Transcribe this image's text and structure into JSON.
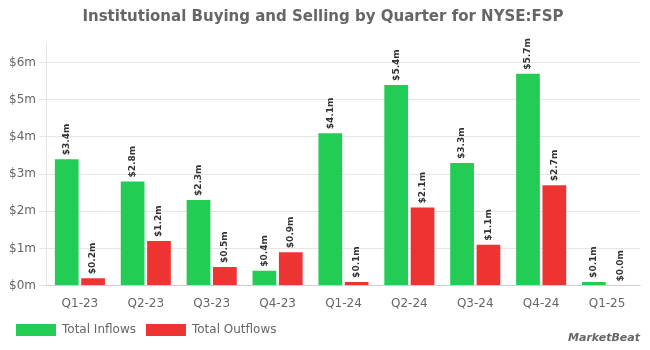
{
  "chart_data": {
    "type": "bar",
    "title": "Institutional Buying and Selling by Quarter for NYSE:FSP",
    "categories": [
      "Q1-23",
      "Q2-23",
      "Q3-23",
      "Q4-23",
      "Q1-24",
      "Q2-24",
      "Q3-24",
      "Q4-24",
      "Q1-25"
    ],
    "series": [
      {
        "name": "Total Inflows",
        "color": "#22cc55",
        "values": [
          3.4,
          2.8,
          2.3,
          0.4,
          4.1,
          5.4,
          3.3,
          5.7,
          0.1
        ],
        "value_labels": [
          "$3.4m",
          "$2.8m",
          "$2.3m",
          "$0.4m",
          "$4.1m",
          "$5.4m",
          "$3.3m",
          "$5.7m",
          "$0.1m"
        ]
      },
      {
        "name": "Total Outflows",
        "color": "#ee3333",
        "values": [
          0.2,
          1.2,
          0.5,
          0.9,
          0.1,
          2.1,
          1.1,
          2.7,
          0.0
        ],
        "value_labels": [
          "$0.2m",
          "$1.2m",
          "$0.5m",
          "$0.9m",
          "$0.1m",
          "$2.1m",
          "$1.1m",
          "$2.7m",
          "$0.0m"
        ]
      }
    ],
    "ylim": [
      0,
      6.5
    ],
    "yticks": [
      {
        "value": 0,
        "label": "$0m"
      },
      {
        "value": 1,
        "label": "$1m"
      },
      {
        "value": 2,
        "label": "$2m"
      },
      {
        "value": 3,
        "label": "$3m"
      },
      {
        "value": 4,
        "label": "$4m"
      },
      {
        "value": 5,
        "label": "$5m"
      },
      {
        "value": 6,
        "label": "$6m"
      }
    ],
    "grid": true,
    "legend": "lower left",
    "data_labels": true,
    "annotations": [
      "MarketBeat"
    ]
  }
}
